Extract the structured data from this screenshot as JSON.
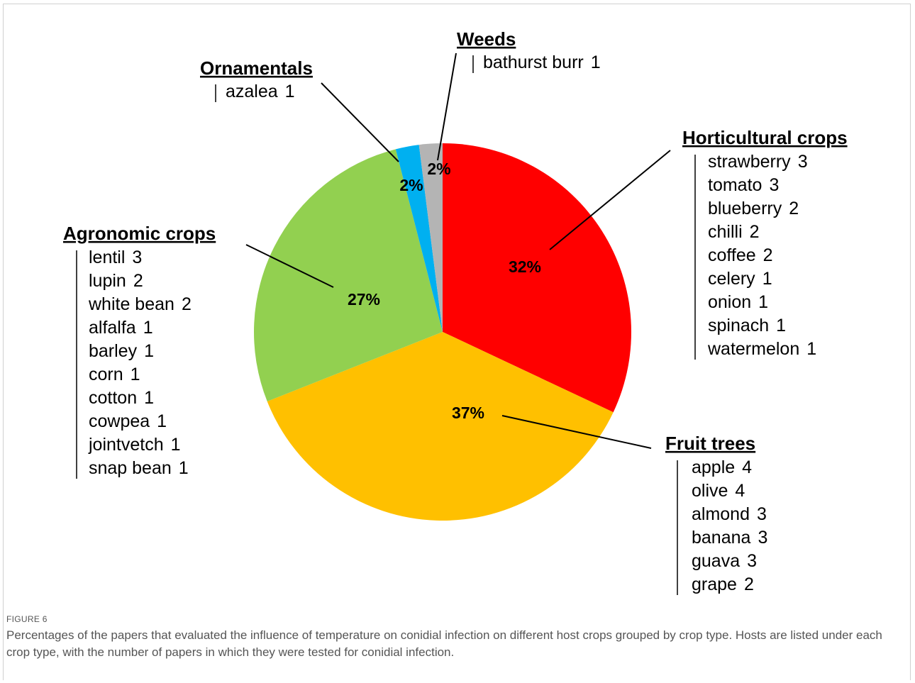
{
  "chart_data": {
    "type": "pie",
    "figure_label": "FIGURE 6",
    "caption": "Percentages of the papers that evaluated the influence of temperature on conidial infection on different host crops grouped by crop type. Hosts are listed under each crop type, with the number of papers in which they were tested for conidial infection.",
    "categories": [
      "Horticultural crops",
      "Fruit trees",
      "Agronomic crops",
      "Ornamentals",
      "Weeds"
    ],
    "values": [
      32,
      37,
      27,
      2,
      2
    ],
    "value_labels": [
      "32%",
      "37%",
      "27%",
      "2%",
      "2%"
    ],
    "colors": [
      "#ff0000",
      "#ffc000",
      "#92d050",
      "#00b0f0",
      "#b4b4b4"
    ],
    "hosts": [
      [
        {
          "name": "strawberry",
          "count": 3
        },
        {
          "name": "tomato",
          "count": 3
        },
        {
          "name": "blueberry",
          "count": 2
        },
        {
          "name": "chilli",
          "count": 2
        },
        {
          "name": "coffee",
          "count": 2
        },
        {
          "name": "celery",
          "count": 1
        },
        {
          "name": "onion",
          "count": 1
        },
        {
          "name": "spinach",
          "count": 1
        },
        {
          "name": "watermelon",
          "count": 1
        }
      ],
      [
        {
          "name": "apple",
          "count": 4
        },
        {
          "name": "olive",
          "count": 4
        },
        {
          "name": "almond",
          "count": 3
        },
        {
          "name": "banana",
          "count": 3
        },
        {
          "name": "guava",
          "count": 3
        },
        {
          "name": "grape",
          "count": 2
        }
      ],
      [
        {
          "name": "lentil",
          "count": 3
        },
        {
          "name": "lupin",
          "count": 2
        },
        {
          "name": "white bean",
          "count": 2
        },
        {
          "name": "alfalfa",
          "count": 1
        },
        {
          "name": "barley",
          "count": 1
        },
        {
          "name": "corn",
          "count": 1
        },
        {
          "name": "cotton",
          "count": 1
        },
        {
          "name": "cowpea",
          "count": 1
        },
        {
          "name": "jointvetch",
          "count": 1
        },
        {
          "name": "snap bean",
          "count": 1
        }
      ],
      [
        {
          "name": "azalea",
          "count": 1
        }
      ],
      [
        {
          "name": "bathurst burr",
          "count": 1
        }
      ]
    ]
  }
}
